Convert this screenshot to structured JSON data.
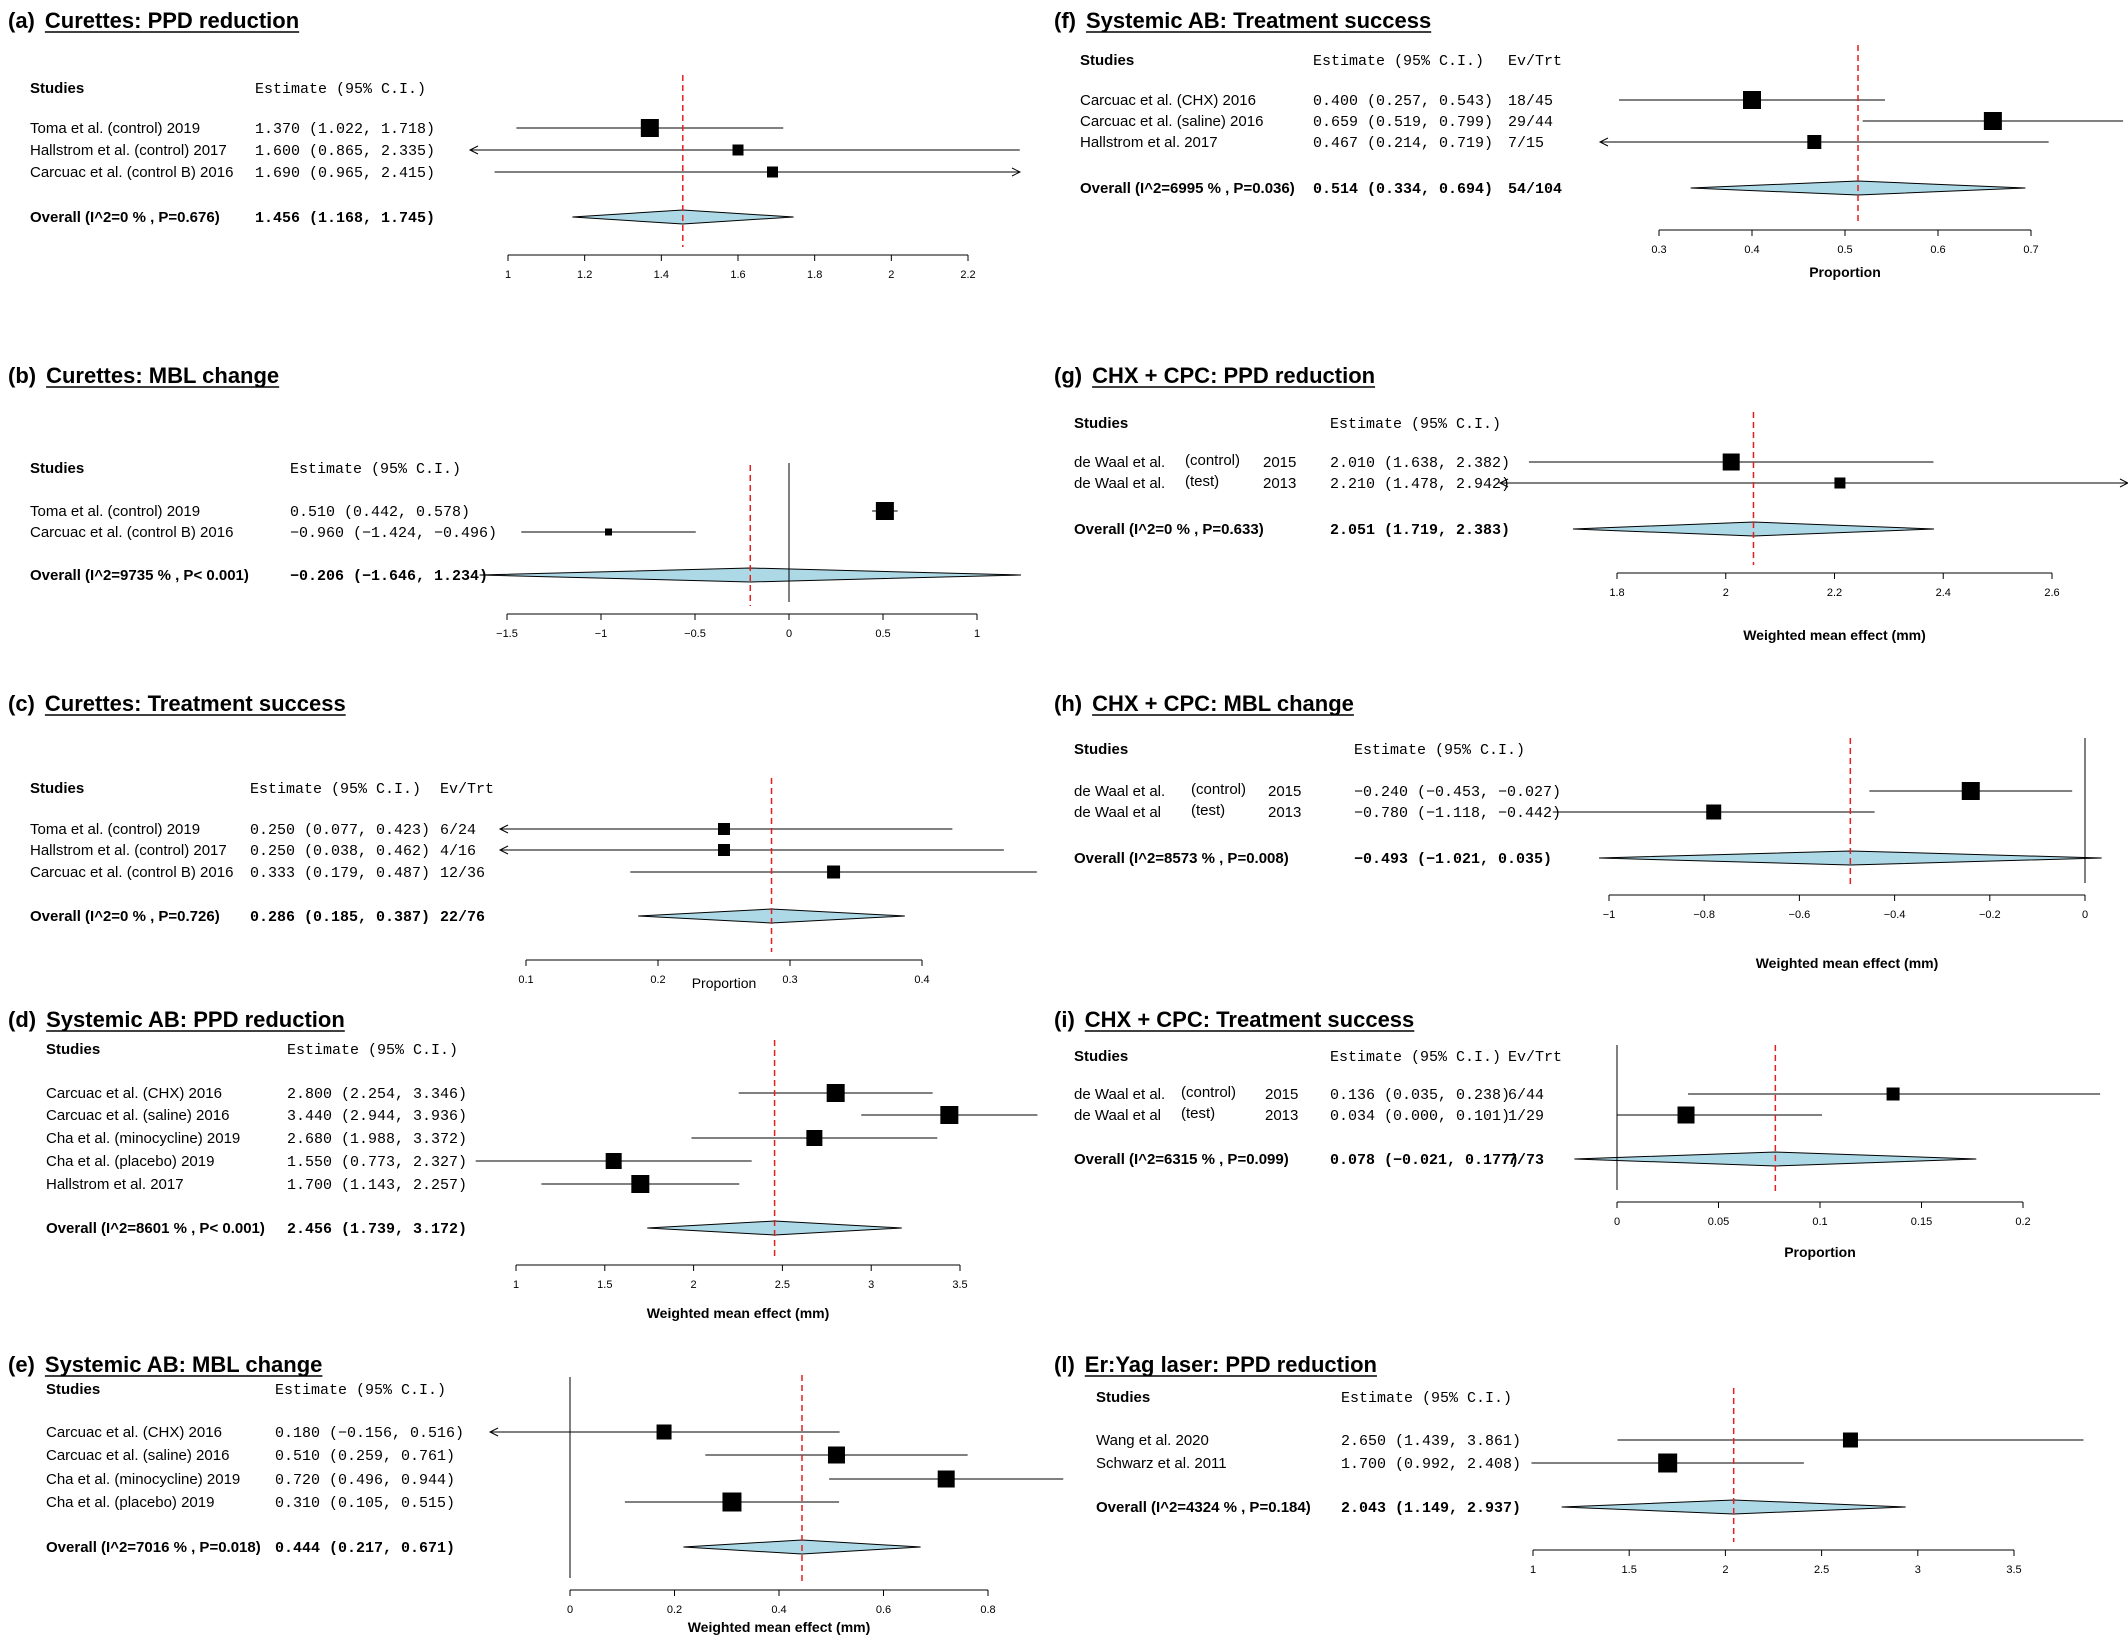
{
  "chart_data": [
    {
      "type": "forest",
      "panel": "(a)",
      "title": "Curettes: PPD reduction",
      "header": {
        "studies": "Studies",
        "estimate": "Estimate (95% C.I.)"
      },
      "xlabel": "",
      "xlim": [
        1,
        2.2
      ],
      "ticks": [
        1,
        1.2,
        1.4,
        1.6,
        1.8,
        2,
        2.2
      ],
      "tick_labels": [
        "1",
        "1.2",
        "1.4",
        "1.6",
        "1.8",
        "2",
        "2.2"
      ],
      "zero_line": false,
      "studies": [
        {
          "name": "Toma et al. (control) 2019",
          "est": 1.37,
          "lo": 1.022,
          "hi": 1.718,
          "text": "1.370 (1.022, 1.718)",
          "size": 18
        },
        {
          "name": "Hallstrom et al. (control) 2017",
          "est": 1.6,
          "lo": 0.865,
          "hi": 2.335,
          "text": "1.600 (0.865, 2.335)",
          "size": 11
        },
        {
          "name": "Carcuac et al. (control B) 2016",
          "est": 1.69,
          "lo": 0.965,
          "hi": 2.415,
          "text": "1.690 (0.965, 2.415)",
          "size": 11
        }
      ],
      "overall": {
        "name": "Overall (I^2=0 % , P=0.676)",
        "est": 1.456,
        "lo": 1.168,
        "hi": 1.745,
        "text": "1.456 (1.168, 1.745)"
      }
    },
    {
      "type": "forest",
      "panel": "(b)",
      "title": "Curettes: MBL change",
      "header": {
        "studies": "Studies",
        "estimate": "Estimate (95% C.I.)"
      },
      "xlabel": "",
      "xlim": [
        -1.5,
        1
      ],
      "ticks": [
        -1.5,
        -1,
        -0.5,
        0,
        0.5,
        1
      ],
      "tick_labels": [
        "−1.5",
        "−1",
        "−0.5",
        "0",
        "0.5",
        "1"
      ],
      "zero_line": true,
      "studies": [
        {
          "name": "Toma et al. (control) 2019",
          "est": 0.51,
          "lo": 0.442,
          "hi": 0.578,
          "text": "0.510  (0.442,  0.578)",
          "size": 18
        },
        {
          "name": "Carcuac et al. (control B) 2016",
          "est": -0.96,
          "lo": -1.424,
          "hi": -0.496,
          "text": "−0.960 (−1.424, −0.496)",
          "size": 7
        }
      ],
      "overall": {
        "name": "Overall (I^2=9735 % , P< 0.001)",
        "est": -0.206,
        "lo": -1.646,
        "hi": 1.234,
        "text": "−0.206 (−1.646,  1.234)"
      }
    },
    {
      "type": "forest",
      "panel": "(c)",
      "title": "Curettes: Treatment success",
      "header": {
        "studies": "Studies",
        "estimate": "Estimate (95% C.I.)",
        "ev": "Ev/Trt"
      },
      "xlabel": "Proportion",
      "xlim": [
        0.1,
        0.4
      ],
      "ticks": [
        0.1,
        0.2,
        0.3,
        0.4
      ],
      "tick_labels": [
        "0.1",
        "0.2",
        "0.3",
        "0.4"
      ],
      "zero_line": false,
      "studies": [
        {
          "name": "Toma et al. (control) 2019",
          "est": 0.25,
          "lo": 0.077,
          "hi": 0.423,
          "text": "0.250 (0.077, 0.423)",
          "ev": "6/24",
          "size": 12
        },
        {
          "name": "Hallstrom et al. (control) 2017",
          "est": 0.25,
          "lo": 0.038,
          "hi": 0.462,
          "text": "0.250 (0.038, 0.462)",
          "ev": "4/16",
          "size": 12
        },
        {
          "name": "Carcuac et al. (control B) 2016",
          "est": 0.333,
          "lo": 0.179,
          "hi": 0.487,
          "text": "0.333 (0.179, 0.487)",
          "ev": "12/36",
          "size": 13
        }
      ],
      "overall": {
        "name": "Overall (I^2=0 % , P=0.726)",
        "est": 0.286,
        "lo": 0.185,
        "hi": 0.387,
        "text": "0.286 (0.185, 0.387)",
        "ev": "22/76"
      }
    },
    {
      "type": "forest",
      "panel": "(d)",
      "title": "Systemic AB: PPD reduction",
      "header": {
        "studies": "Studies",
        "estimate": "Estimate (95% C.I.)"
      },
      "xlabel": "Weighted mean effect (mm)",
      "xlim": [
        1,
        3.5
      ],
      "ticks": [
        1,
        1.5,
        2,
        2.5,
        3,
        3.5
      ],
      "tick_labels": [
        "1",
        "1.5",
        "2",
        "2.5",
        "3",
        "3.5"
      ],
      "zero_line": false,
      "studies": [
        {
          "name": "Carcuac et al. (CHX)  2016",
          "est": 2.8,
          "lo": 2.254,
          "hi": 3.346,
          "text": "2.800 (2.254, 3.346)",
          "size": 18
        },
        {
          "name": "Carcuac et al. (saline) 2016",
          "est": 3.44,
          "lo": 2.944,
          "hi": 3.936,
          "text": "3.440 (2.944, 3.936)",
          "size": 18
        },
        {
          "name": "Cha et al. (minocycline) 2019",
          "est": 2.68,
          "lo": 1.988,
          "hi": 3.372,
          "text": "2.680 (1.988, 3.372)",
          "size": 16
        },
        {
          "name": "Cha et al.  (placebo) 2019",
          "est": 1.55,
          "lo": 0.773,
          "hi": 2.327,
          "text": "1.550 (0.773, 2.327)",
          "size": 16
        },
        {
          "name": "Hallstrom et al.  2017",
          "est": 1.7,
          "lo": 1.143,
          "hi": 2.257,
          "text": "1.700 (1.143, 2.257)",
          "size": 18
        }
      ],
      "overall": {
        "name": "Overall (I^2=8601 % , P< 0.001)",
        "est": 2.456,
        "lo": 1.739,
        "hi": 3.172,
        "text": "2.456 (1.739, 3.172)"
      }
    },
    {
      "type": "forest",
      "panel": "(e)",
      "title": "Systemic AB: MBL change",
      "header": {
        "studies": "Studies",
        "estimate": "Estimate (95% C.I.)"
      },
      "xlabel": "Weighted mean effect (mm)",
      "xlim": [
        0,
        0.8
      ],
      "ticks": [
        0,
        0.2,
        0.4,
        0.6,
        0.8
      ],
      "tick_labels": [
        "0",
        "0.2",
        "0.4",
        "0.6",
        "0.8"
      ],
      "zero_line": true,
      "studies": [
        {
          "name": "Carcuac et al. (CHX) 2016",
          "est": 0.18,
          "lo": -0.156,
          "hi": 0.516,
          "text": "0.180 (−0.156, 0.516)",
          "size": 15
        },
        {
          "name": "Carcuac et al. (saline) 2016",
          "est": 0.51,
          "lo": 0.259,
          "hi": 0.761,
          "text": "0.510  (0.259, 0.761)",
          "size": 17
        },
        {
          "name": "Cha et al. (minocycline) 2019",
          "est": 0.72,
          "lo": 0.496,
          "hi": 0.944,
          "text": "0.720  (0.496, 0.944)",
          "size": 17
        },
        {
          "name": "Cha et al. (placebo) 2019",
          "est": 0.31,
          "lo": 0.105,
          "hi": 0.515,
          "text": "0.310  (0.105, 0.515)",
          "size": 19
        }
      ],
      "overall": {
        "name": "Overall (I^2=7016 % , P=0.018)",
        "est": 0.444,
        "lo": 0.217,
        "hi": 0.671,
        "text": "0.444  (0.217, 0.671)"
      }
    },
    {
      "type": "forest",
      "panel": "(f)",
      "title": "Systemic AB: Treatment success",
      "header": {
        "studies": "Studies",
        "estimate": "Estimate (95% C.I.)",
        "ev": "Ev/Trt"
      },
      "xlabel": "Proportion",
      "xlim": [
        0.3,
        0.7
      ],
      "ticks": [
        0.3,
        0.4,
        0.5,
        0.6,
        0.7
      ],
      "tick_labels": [
        "0.3",
        "0.4",
        "0.5",
        "0.6",
        "0.7"
      ],
      "zero_line": false,
      "studies": [
        {
          "name": "Carcuac et al. (CHX) 2016",
          "est": 0.4,
          "lo": 0.257,
          "hi": 0.543,
          "text": "0.400 (0.257, 0.543)",
          "ev": "18/45",
          "size": 18
        },
        {
          "name": "Carcuac et al. (saline) 2016",
          "est": 0.659,
          "lo": 0.519,
          "hi": 0.799,
          "text": "0.659 (0.519, 0.799)",
          "ev": "29/44",
          "size": 18
        },
        {
          "name": "Hallstrom et al.  2017",
          "est": 0.467,
          "lo": 0.214,
          "hi": 0.719,
          "text": "0.467 (0.214, 0.719)",
          "ev": "7/15",
          "size": 14
        }
      ],
      "overall": {
        "name": "Overall (I^2=6995 % , P=0.036)",
        "est": 0.514,
        "lo": 0.334,
        "hi": 0.694,
        "text": "0.514 (0.334, 0.694)",
        "ev": "54/104"
      }
    },
    {
      "type": "forest",
      "panel": "(g)",
      "title": "CHX + CPC: PPD reduction",
      "header": {
        "studies": "Studies",
        "estimate": "Estimate (95% C.I.)"
      },
      "xlabel": "Weighted mean effect (mm)",
      "xlim": [
        1.8,
        2.6
      ],
      "ticks": [
        1.8,
        2,
        2.2,
        2.4,
        2.6
      ],
      "tick_labels": [
        "1.8",
        "2",
        "2.2",
        "2.4",
        "2.6"
      ],
      "zero_line": false,
      "studies": [
        {
          "name": "de Waal et al.",
          "sub": "(control)",
          "year": "2015",
          "est": 2.01,
          "lo": 1.638,
          "hi": 2.382,
          "text": "2.010 (1.638, 2.382)",
          "size": 17
        },
        {
          "name": "de Waal et al.",
          "sub": "(test)",
          "year": "2013",
          "est": 2.21,
          "lo": 1.478,
          "hi": 2.942,
          "text": "2.210 (1.478, 2.942)",
          "size": 11
        }
      ],
      "overall": {
        "name": "Overall (I^2=0 % , P=0.633)",
        "est": 2.051,
        "lo": 1.719,
        "hi": 2.383,
        "text": "2.051 (1.719, 2.383)"
      }
    },
    {
      "type": "forest",
      "panel": "(h)",
      "title": "CHX + CPC: MBL change",
      "header": {
        "studies": "Studies",
        "estimate": "Estimate (95% C.I.)"
      },
      "xlabel": "Weighted mean effect (mm)",
      "xlim": [
        -1,
        0
      ],
      "ticks": [
        -1,
        -0.8,
        -0.6,
        -0.4,
        -0.2,
        0
      ],
      "tick_labels": [
        "−1",
        "−0.8",
        "−0.6",
        "−0.4",
        "−0.2",
        "0"
      ],
      "zero_line": true,
      "studies": [
        {
          "name": "de Waal et al.",
          "sub": "(control)",
          "year": "2015",
          "est": -0.24,
          "lo": -0.453,
          "hi": -0.027,
          "text": "−0.240 (−0.453, −0.027)",
          "size": 18
        },
        {
          "name": "de Waal et al",
          "sub": "(test)",
          "year": "2013",
          "est": -0.78,
          "lo": -1.118,
          "hi": -0.442,
          "text": "−0.780 (−1.118, −0.442)",
          "size": 15
        }
      ],
      "overall": {
        "name": "Overall (I^2=8573 % , P=0.008)",
        "est": -0.493,
        "lo": -1.021,
        "hi": 0.035,
        "text": "−0.493 (−1.021,  0.035)"
      }
    },
    {
      "type": "forest",
      "panel": "(i)",
      "title": "CHX + CPC: Treatment success",
      "header": {
        "studies": "Studies",
        "estimate": "Estimate (95% C.I.)",
        "ev": "Ev/Trt"
      },
      "xlabel": "Proportion",
      "xlim": [
        0,
        0.2
      ],
      "ticks": [
        0,
        0.05,
        0.1,
        0.15,
        0.2
      ],
      "tick_labels": [
        "0",
        "0.05",
        "0.1",
        "0.15",
        "0.2"
      ],
      "zero_line": true,
      "studies": [
        {
          "name": "de Waal et al.",
          "sub": "(control)",
          "year": "2015",
          "est": 0.136,
          "lo": 0.035,
          "hi": 0.238,
          "text": "0.136 (0.035, 0.238)",
          "ev": "6/44",
          "size": 13
        },
        {
          "name": "de Waal et al",
          "sub": "(test)",
          "year": "2013",
          "est": 0.034,
          "lo": 0.0,
          "hi": 0.101,
          "text": "0.034 (0.000, 0.101)",
          "ev": "1/29",
          "size": 17
        }
      ],
      "overall": {
        "name": "Overall (I^2=6315 % , P=0.099)",
        "est": 0.078,
        "lo": -0.021,
        "hi": 0.177,
        "text": "0.078 (−0.021, 0.177)",
        "ev": "7/73"
      }
    },
    {
      "type": "forest",
      "panel": "(l)",
      "title": "Er:Yag laser: PPD reduction",
      "header": {
        "studies": "Studies",
        "estimate": "Estimate (95% C.I.)"
      },
      "xlabel": "",
      "xlim": [
        1,
        3.5
      ],
      "ticks": [
        1,
        1.5,
        2,
        2.5,
        3,
        3.5
      ],
      "tick_labels": [
        "1",
        "1.5",
        "2",
        "2.5",
        "3",
        "3.5"
      ],
      "zero_line": false,
      "studies": [
        {
          "name": "Wang et al. 2020",
          "est": 2.65,
          "lo": 1.439,
          "hi": 3.861,
          "text": "2.650 (1.439, 3.861)",
          "size": 15
        },
        {
          "name": "Schwarz et al. 2011",
          "est": 1.7,
          "lo": 0.992,
          "hi": 2.408,
          "text": "1.700 (0.992, 2.408)",
          "size": 19
        }
      ],
      "overall": {
        "name": "Overall (I^2=4324 % , P=0.184)",
        "est": 2.043,
        "lo": 1.149,
        "hi": 2.937,
        "text": "2.043 (1.149, 2.937)"
      }
    }
  ]
}
